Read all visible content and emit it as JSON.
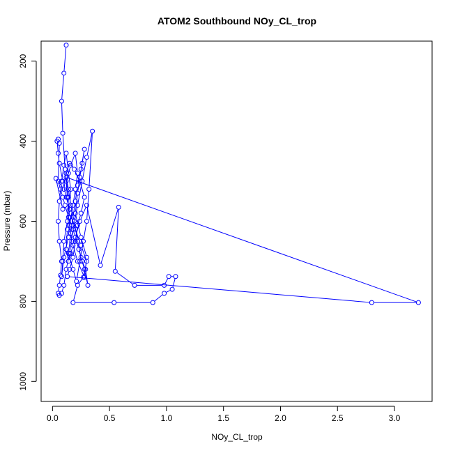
{
  "chart_data": {
    "type": "line",
    "title": "ATOM2 Southbound NOy_CL_trop",
    "xlabel": "NOy_CL_trop",
    "ylabel": "Pressure (mbar)",
    "xlim": [
      -0.1,
      3.33
    ],
    "ylim": [
      1050,
      150
    ],
    "y_reversed": true,
    "grid": false,
    "x_ticks": [
      0.0,
      0.5,
      1.0,
      1.5,
      2.0,
      2.5,
      3.0
    ],
    "x_tick_labels": [
      "0.0",
      "0.5",
      "1.0",
      "1.5",
      "2.0",
      "2.5",
      "3.0"
    ],
    "y_ticks": [
      200,
      400,
      600,
      800,
      1000
    ],
    "y_tick_labels": [
      "200",
      "400",
      "600",
      "800",
      "1000"
    ],
    "series_color": "#0000ff",
    "series": [
      {
        "x": [
          0.12,
          0.1,
          0.08,
          0.09,
          0.11,
          0.14,
          0.13,
          0.1,
          0.09,
          0.08,
          0.1,
          0.14,
          0.15,
          0.13,
          0.12,
          0.16,
          0.2,
          0.22,
          0.2,
          0.18,
          0.15,
          0.17,
          0.22,
          0.28,
          0.3,
          0.25,
          0.2,
          0.22,
          0.24,
          0.26,
          0.28,
          0.25,
          0.22,
          0.2,
          0.18,
          0.16,
          0.14,
          0.18,
          0.21,
          0.24,
          0.27,
          0.3,
          0.32,
          0.35,
          0.3,
          0.26,
          0.22,
          0.18,
          0.15,
          0.12,
          0.1,
          0.08,
          0.06,
          0.05,
          0.06,
          0.07,
          0.08,
          0.06,
          0.05,
          0.06,
          0.08,
          0.1,
          0.12,
          0.14,
          0.16,
          0.15,
          0.13,
          0.12,
          0.14,
          0.16,
          0.18,
          0.2,
          0.24,
          0.3,
          0.42,
          0.58,
          0.55,
          0.72,
          0.98,
          1.02,
          1.08,
          1.05,
          0.98,
          0.88,
          0.54,
          0.18,
          0.22,
          0.27,
          0.3,
          0.25,
          0.2,
          0.16,
          0.12,
          0.09,
          0.06,
          0.05,
          0.04,
          0.05,
          0.06,
          0.05,
          0.07,
          0.09,
          0.11,
          0.14,
          0.17,
          0.2,
          0.23,
          0.26,
          0.29,
          0.31,
          0.28,
          0.25,
          0.22,
          0.19,
          0.16,
          0.14,
          0.12,
          3.21,
          2.8,
          0.13,
          0.15,
          0.18,
          0.2,
          0.22,
          0.25,
          0.28,
          0.24,
          0.19,
          0.15,
          0.12,
          0.1,
          0.03,
          0.09
        ],
        "y": [
          160,
          230,
          300,
          380,
          470,
          540,
          600,
          650,
          700,
          738,
          690,
          640,
          590,
          540,
          500,
          460,
          430,
          480,
          520,
          560,
          610,
          650,
          700,
          740,
          690,
          640,
          580,
          530,
          490,
          455,
          420,
          470,
          510,
          550,
          590,
          630,
          680,
          720,
          750,
          700,
          650,
          600,
          520,
          375,
          440,
          500,
          560,
          620,
          680,
          720,
          760,
          780,
          785,
          780,
          760,
          735,
          700,
          650,
          600,
          550,
          500,
          460,
          430,
          480,
          520,
          570,
          620,
          670,
          700,
          680,
          660,
          640,
          600,
          560,
          710,
          565,
          725,
          760,
          760,
          738,
          738,
          770,
          780,
          803,
          803,
          803,
          760,
          740,
          700,
          660,
          620,
          580,
          540,
          500,
          455,
          430,
          400,
          395,
          405,
          500,
          520,
          540,
          560,
          590,
          610,
          640,
          670,
          700,
          720,
          760,
          720,
          690,
          650,
          600,
          560,
          520,
          490,
          803,
          803,
          738,
          720,
          690,
          650,
          610,
          580,
          540,
          500,
          470,
          455,
          480,
          520,
          493,
          570
        ]
      }
    ]
  }
}
